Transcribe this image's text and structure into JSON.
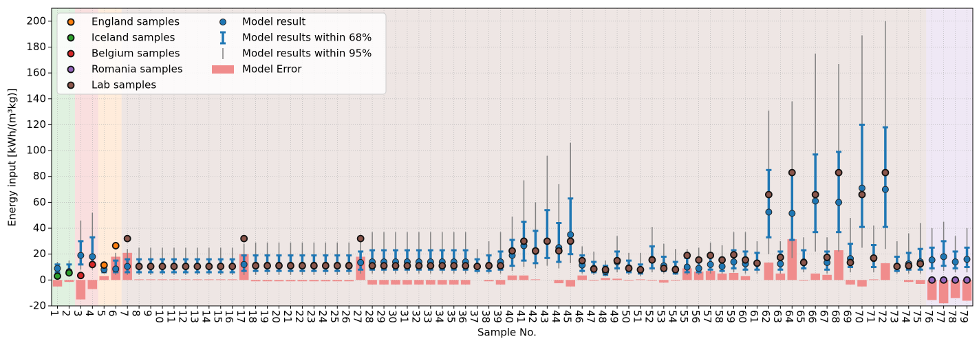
{
  "chart_data": {
    "type": "errorbar",
    "xlabel": "Sample No.",
    "ylabel": "Energy input [kWh/(m³kg)]",
    "xlim": [
      0.5,
      79.5
    ],
    "ylim": [
      -20,
      210
    ],
    "yticks": [
      -20,
      0,
      20,
      40,
      60,
      80,
      100,
      120,
      140,
      160,
      180,
      200
    ],
    "xticks": [
      1,
      2,
      3,
      4,
      5,
      6,
      7,
      8,
      9,
      10,
      11,
      12,
      13,
      14,
      15,
      16,
      17,
      18,
      19,
      20,
      21,
      22,
      23,
      24,
      25,
      26,
      27,
      28,
      29,
      30,
      31,
      32,
      33,
      34,
      35,
      36,
      37,
      38,
      39,
      40,
      41,
      42,
      43,
      44,
      45,
      46,
      47,
      48,
      49,
      50,
      51,
      52,
      53,
      54,
      55,
      56,
      57,
      58,
      59,
      60,
      61,
      62,
      63,
      64,
      65,
      66,
      67,
      68,
      69,
      70,
      71,
      72,
      73,
      74,
      75,
      76,
      77,
      78,
      79
    ],
    "grid": true,
    "x": [
      1,
      2,
      3,
      4,
      5,
      6,
      7,
      8,
      9,
      10,
      11,
      12,
      13,
      14,
      15,
      16,
      17,
      18,
      19,
      20,
      21,
      22,
      23,
      24,
      25,
      26,
      27,
      28,
      29,
      30,
      31,
      32,
      33,
      34,
      35,
      36,
      37,
      38,
      39,
      40,
      41,
      42,
      43,
      44,
      45,
      46,
      47,
      48,
      49,
      50,
      51,
      52,
      53,
      54,
      55,
      56,
      57,
      58,
      59,
      60,
      61,
      62,
      63,
      64,
      65,
      66,
      67,
      68,
      69,
      70,
      71,
      72,
      73,
      74,
      75,
      76,
      77,
      78,
      79
    ],
    "samples": [
      {
        "name": "England samples",
        "color": "#ff7f0e",
        "x": [
          5,
          6
        ],
        "values": [
          11.5,
          26.5
        ]
      },
      {
        "name": "Iceland samples",
        "color": "#2ca02c",
        "x": [
          1,
          2
        ],
        "values": [
          3,
          5.5
        ]
      },
      {
        "name": "Belgium samples",
        "color": "#d62728",
        "x": [
          3,
          4
        ],
        "values": [
          3.5,
          12
        ]
      },
      {
        "name": "Romania samples",
        "color": "#9467bd",
        "x": [
          76,
          77,
          78,
          79
        ],
        "values": [
          0,
          0,
          0,
          0
        ]
      },
      {
        "name": "Lab samples",
        "color": "#8c564b",
        "x": [
          7,
          8,
          9,
          10,
          11,
          12,
          13,
          14,
          15,
          16,
          17,
          18,
          19,
          20,
          21,
          22,
          23,
          24,
          25,
          26,
          27,
          28,
          29,
          30,
          31,
          32,
          33,
          34,
          35,
          36,
          37,
          38,
          39,
          40,
          41,
          42,
          43,
          44,
          45,
          46,
          47,
          48,
          49,
          50,
          51,
          52,
          53,
          54,
          55,
          56,
          57,
          58,
          59,
          60,
          61,
          62,
          63,
          64,
          65,
          66,
          67,
          68,
          69,
          70,
          71,
          72,
          73,
          74,
          75
        ],
        "values": [
          32,
          10.5,
          10.5,
          10.5,
          10.5,
          10.5,
          10.5,
          10.5,
          10.5,
          10.5,
          32,
          11,
          11,
          11,
          11,
          11,
          11,
          11,
          11,
          11,
          32,
          11,
          11,
          11,
          11,
          11,
          11,
          11,
          11,
          11,
          10.5,
          11,
          11,
          22.5,
          30,
          22.5,
          30,
          22.5,
          30,
          15,
          8.5,
          8,
          15,
          9,
          8,
          15.5,
          9,
          8,
          19,
          15.5,
          19,
          15.5,
          19.5,
          15.5,
          13,
          66,
          17.5,
          83,
          13.5,
          66,
          17.5,
          83,
          13.5,
          66,
          17,
          83,
          10.5,
          11,
          12.5
        ]
      }
    ],
    "model": {
      "name": "Model result",
      "color": "#1f77b4",
      "values": [
        9,
        6.5,
        19,
        18,
        8,
        8.5,
        10.5,
        10.5,
        10.5,
        10.5,
        10.5,
        10.5,
        10.5,
        10.5,
        10.5,
        10.5,
        12,
        11.5,
        11.5,
        11.5,
        11.5,
        11.5,
        11.5,
        11.5,
        11.5,
        11.5,
        13.5,
        14,
        14,
        14,
        14,
        14,
        14,
        14,
        14,
        14,
        10.5,
        11.5,
        14,
        19,
        26.5,
        22,
        30,
        25,
        35,
        11.5,
        9,
        6.5,
        14,
        9.5,
        7.5,
        16,
        11,
        8.5,
        10,
        9,
        12,
        10.5,
        14,
        12.5,
        13,
        52.5,
        12.5,
        51.5,
        14,
        61,
        13.5,
        60,
        16.5,
        71,
        16.5,
        70,
        10.5,
        12.5,
        14,
        15.5,
        18,
        14,
        16
      ]
    },
    "ci68": {
      "name": "Model results within 68%",
      "color": "#1f77b4",
      "values": [
        [
          6,
          12
        ],
        [
          5,
          12
        ],
        [
          12,
          30
        ],
        [
          11,
          33
        ],
        [
          6,
          10
        ],
        [
          6,
          15
        ],
        [
          6,
          16
        ],
        [
          6,
          16
        ],
        [
          6,
          16
        ],
        [
          6,
          16
        ],
        [
          6,
          16
        ],
        [
          6,
          16
        ],
        [
          6,
          16
        ],
        [
          6,
          16
        ],
        [
          6,
          16
        ],
        [
          6,
          16
        ],
        [
          7,
          19
        ],
        [
          7,
          19
        ],
        [
          7,
          19
        ],
        [
          7,
          19
        ],
        [
          7,
          19
        ],
        [
          7,
          19
        ],
        [
          7,
          19
        ],
        [
          7,
          19
        ],
        [
          7,
          19
        ],
        [
          7,
          19
        ],
        [
          8,
          22
        ],
        [
          8,
          23
        ],
        [
          8,
          23
        ],
        [
          8,
          23
        ],
        [
          8,
          23
        ],
        [
          8,
          23
        ],
        [
          8,
          23
        ],
        [
          8,
          23
        ],
        [
          8,
          23
        ],
        [
          8,
          23
        ],
        [
          7,
          16
        ],
        [
          7,
          19
        ],
        [
          8,
          22
        ],
        [
          11,
          31
        ],
        [
          15,
          45
        ],
        [
          13,
          38
        ],
        [
          17,
          54
        ],
        [
          14,
          44
        ],
        [
          20,
          63
        ],
        [
          7,
          19
        ],
        [
          6,
          14
        ],
        [
          4,
          11
        ],
        [
          9,
          22
        ],
        [
          6,
          15
        ],
        [
          5,
          12
        ],
        [
          9,
          26
        ],
        [
          7,
          18
        ],
        [
          5,
          14
        ],
        [
          6,
          17
        ],
        [
          6,
          15
        ],
        [
          8,
          18
        ],
        [
          7,
          17
        ],
        [
          9,
          23
        ],
        [
          8,
          22
        ],
        [
          8,
          21
        ],
        [
          33,
          85
        ],
        [
          8,
          22
        ],
        [
          31,
          84
        ],
        [
          9,
          23
        ],
        [
          37,
          97
        ],
        [
          8,
          22
        ],
        [
          37,
          99
        ],
        [
          10,
          28
        ],
        [
          41,
          120
        ],
        [
          10,
          27
        ],
        [
          41,
          118
        ],
        [
          7,
          18
        ],
        [
          8,
          21
        ],
        [
          8,
          24
        ],
        [
          9,
          25
        ],
        [
          11,
          30
        ],
        [
          9,
          22
        ],
        [
          10,
          25
        ]
      ]
    },
    "ci95": {
      "name": "Model results within 95%",
      "color": "#808080",
      "values": [
        [
          4,
          14
        ],
        [
          4,
          15
        ],
        [
          8,
          46
        ],
        [
          8,
          52
        ],
        [
          5,
          13
        ],
        [
          4,
          21
        ],
        [
          4,
          24
        ],
        [
          4,
          25
        ],
        [
          4,
          25
        ],
        [
          4,
          25
        ],
        [
          4,
          25
        ],
        [
          4,
          25
        ],
        [
          4,
          25
        ],
        [
          4,
          25
        ],
        [
          4,
          25
        ],
        [
          4,
          25
        ],
        [
          4,
          28
        ],
        [
          4,
          29
        ],
        [
          4,
          29
        ],
        [
          4,
          29
        ],
        [
          4,
          29
        ],
        [
          4,
          29
        ],
        [
          4,
          29
        ],
        [
          4,
          29
        ],
        [
          4,
          29
        ],
        [
          4,
          29
        ],
        [
          5,
          35
        ],
        [
          5,
          37
        ],
        [
          5,
          37
        ],
        [
          5,
          37
        ],
        [
          5,
          37
        ],
        [
          5,
          37
        ],
        [
          5,
          37
        ],
        [
          5,
          37
        ],
        [
          5,
          37
        ],
        [
          5,
          37
        ],
        [
          5,
          24
        ],
        [
          5,
          30
        ],
        [
          5,
          37
        ],
        [
          7,
          49
        ],
        [
          10,
          77
        ],
        [
          9,
          60
        ],
        [
          11,
          96
        ],
        [
          9,
          74
        ],
        [
          13,
          106
        ],
        [
          5,
          26
        ],
        [
          4,
          22
        ],
        [
          3,
          15
        ],
        [
          6,
          34
        ],
        [
          4,
          21
        ],
        [
          3,
          21
        ],
        [
          6,
          41
        ],
        [
          5,
          28
        ],
        [
          4,
          24
        ],
        [
          4,
          24
        ],
        [
          4,
          25
        ],
        [
          5,
          29
        ],
        [
          5,
          27
        ],
        [
          6,
          37
        ],
        [
          5,
          37
        ],
        [
          5,
          30
        ],
        [
          20,
          131
        ],
        [
          5,
          30
        ],
        [
          17,
          138
        ],
        [
          6,
          33
        ],
        [
          22,
          175
        ],
        [
          5,
          33
        ],
        [
          22,
          167
        ],
        [
          6,
          48
        ],
        [
          25,
          189
        ],
        [
          6,
          42
        ],
        [
          24,
          200
        ],
        [
          5,
          30
        ],
        [
          5,
          36
        ],
        [
          5,
          44
        ],
        [
          6,
          40
        ],
        [
          7,
          45
        ],
        [
          6,
          34
        ],
        [
          6,
          40
        ]
      ]
    },
    "error": {
      "name": "Model Error",
      "color": "#f08c8c",
      "values": [
        -5,
        -1.5,
        -15,
        -7,
        3,
        18,
        21,
        0.5,
        0.5,
        0.5,
        0.5,
        0.5,
        0.5,
        0.5,
        0.5,
        0.5,
        20,
        -1,
        -1,
        -1,
        -1,
        -1,
        -1,
        -1,
        -1,
        -1,
        18,
        -3.5,
        -3.5,
        -3.5,
        -3.5,
        -3.5,
        -3.5,
        -3.5,
        -3.5,
        -3.5,
        0,
        -1,
        -3.5,
        3.5,
        3.5,
        0.5,
        0,
        -2.5,
        -5,
        3.5,
        -0.5,
        1.5,
        1,
        -0.5,
        0.5,
        -0.5,
        -2,
        -0.5,
        9,
        6.5,
        7,
        5,
        5.5,
        3,
        0,
        13.5,
        5,
        31.5,
        -0.5,
        5,
        4,
        23,
        -3.5,
        -5,
        0.5,
        13,
        0,
        -1.5,
        -3,
        -15.5,
        -18,
        -14,
        -16
      ]
    }
  }
}
